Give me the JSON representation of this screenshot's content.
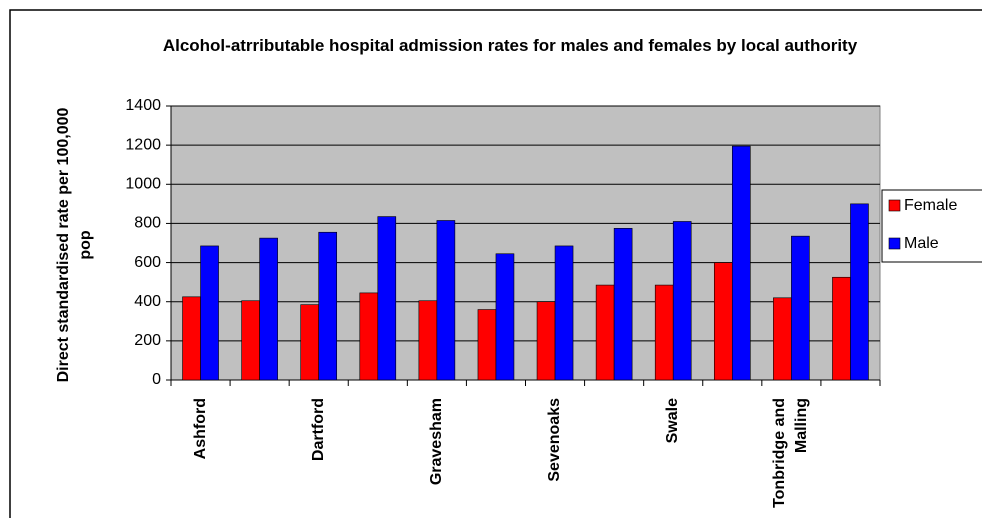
{
  "chart_data": {
    "type": "bar",
    "title": "Alcohol-atrributable hospital admission rates for males and females by local authority",
    "y_label": "Direct standardised rate per 100,000 pop",
    "categories": [
      "Ashford",
      null,
      "Dartford",
      null,
      "Gravesham",
      null,
      "Sevenoaks",
      null,
      "Swale",
      null,
      "Tonbridge and Malling",
      null
    ],
    "series": [
      {
        "name": "Female",
        "color": "#ff0000",
        "values": [
          425,
          405,
          385,
          445,
          405,
          360,
          400,
          485,
          485,
          600,
          420,
          525
        ]
      },
      {
        "name": "Male",
        "color": "#0000ff",
        "values": [
          685,
          725,
          755,
          835,
          815,
          645,
          685,
          775,
          810,
          1195,
          735,
          900
        ]
      }
    ],
    "ylim": [
      0,
      1400
    ],
    "yticks": [
      0,
      200,
      400,
      600,
      800,
      1000,
      1200,
      1400
    ],
    "grid": true,
    "legend": "right"
  }
}
